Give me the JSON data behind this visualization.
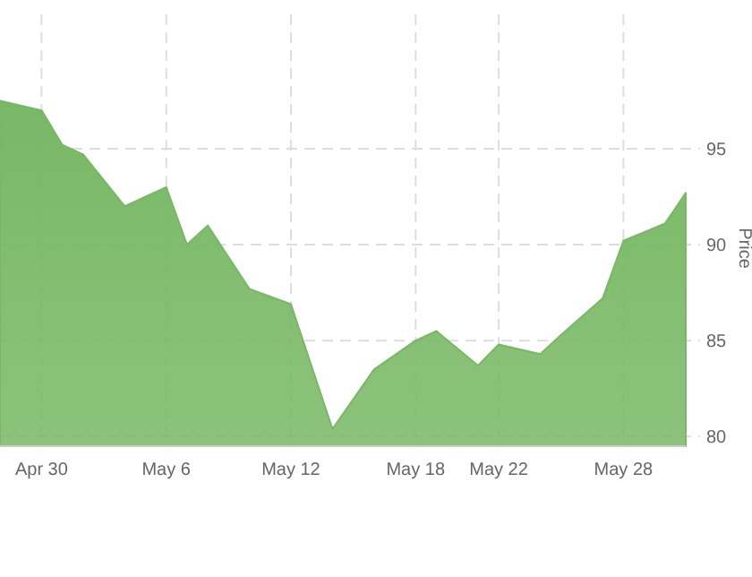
{
  "chart_data": {
    "type": "area",
    "ylabel": "Price",
    "x": [
      "--04-28",
      "--04-30",
      "--05-01",
      "--05-02",
      "--05-04",
      "--05-06",
      "--05-07",
      "--05-08",
      "--05-10",
      "--05-12",
      "--05-14",
      "--05-16",
      "--05-18",
      "--05-19",
      "--05-21",
      "--05-22",
      "--05-24",
      "--05-25",
      "--05-27",
      "--05-28",
      "--05-30",
      "--05-31"
    ],
    "series": [
      {
        "color": "#78b865",
        "values": [
          97.5,
          97.0,
          95.2,
          94.7,
          92.0,
          93.0,
          90.0,
          91.0,
          87.7,
          86.9,
          80.4,
          83.5,
          85.0,
          85.5,
          83.7,
          84.8,
          84.3,
          85.3,
          87.2,
          90.2,
          91.1,
          92.7
        ]
      }
    ],
    "xlim": [
      "--04-28",
      "--05-31"
    ],
    "xticks": [
      {
        "value": "--04-30",
        "label": "Apr 30"
      },
      {
        "value": "--05-06",
        "label": "May 6"
      },
      {
        "value": "--05-12",
        "label": "May 12"
      },
      {
        "value": "--05-18",
        "label": "May 18"
      },
      {
        "value": "--05-22",
        "label": "May 22"
      },
      {
        "value": "--05-28",
        "label": "May 28"
      }
    ],
    "ylim": [
      79.5,
      102
    ],
    "yticks": [
      80,
      85,
      90,
      95
    ],
    "grid": true
  }
}
